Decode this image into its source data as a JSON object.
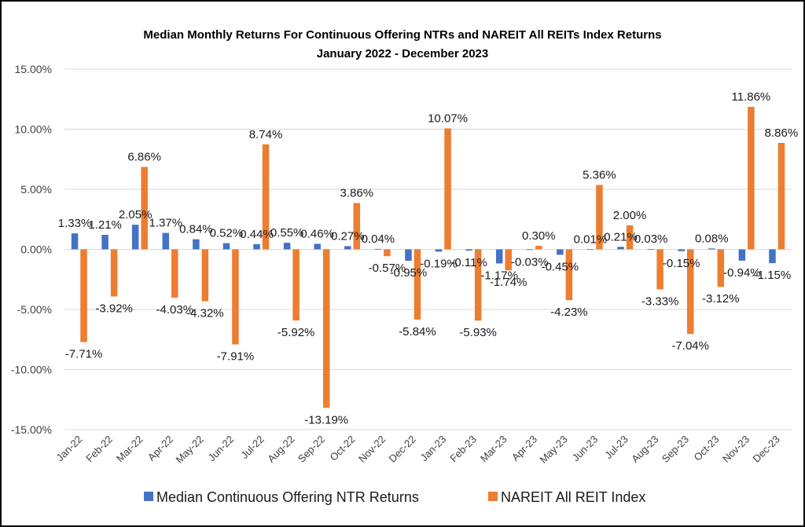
{
  "chart_data": {
    "type": "bar",
    "title": "Median Monthly Returns For Continuous Offering NTRs and NAREIT All REITs Index Returns",
    "subtitle": "January 2022 - December 2023",
    "xlabel": "",
    "ylabel": "",
    "ylim": [
      -15,
      15
    ],
    "yticks": [
      15,
      10,
      5,
      0,
      -5,
      -10,
      -15
    ],
    "ytick_labels": [
      "15.00%",
      "10.00%",
      "5.00%",
      "0.00%",
      "-5.00%",
      "-10.00%",
      "-15.00%"
    ],
    "grid": true,
    "legend_position": "bottom",
    "categories": [
      "Jan-22",
      "Feb-22",
      "Mar-22",
      "Apr-22",
      "May-22",
      "Jun-22",
      "Jul-22",
      "Aug-22",
      "Sep-22",
      "Oct-22",
      "Nov-22",
      "Dec-22",
      "Jan-23",
      "Feb-23",
      "Mar-23",
      "Apr-23",
      "May-23",
      "Jun-23",
      "Jul-23",
      "Aug-23",
      "Sep-23",
      "Oct-23",
      "Nov-23",
      "Dec-23"
    ],
    "series": [
      {
        "name": "Median Continuous Offering NTR Returns",
        "color": "#4472C4",
        "values": [
          1.33,
          1.21,
          2.05,
          1.37,
          0.84,
          0.52,
          0.44,
          0.55,
          0.46,
          0.27,
          0.04,
          -0.95,
          -0.19,
          -0.11,
          -1.17,
          -0.03,
          -0.45,
          0.01,
          0.21,
          0.03,
          -0.15,
          0.08,
          -0.94,
          -1.15
        ],
        "labels": [
          "1.33%",
          "1.21%",
          "2.05%",
          "1.37%",
          "0.84%",
          "0.52%",
          "0.44%",
          "0.55%",
          "0.46%",
          "0.27%",
          "0.04%",
          "-0.95%",
          "-0.19%",
          "-0.11%",
          "-1.17%",
          "-0.03%",
          "-0.45%",
          "0.01%",
          "0.21%",
          "0.03%",
          "-0.15%",
          "0.08%",
          "-0.94%",
          "-1.15%"
        ]
      },
      {
        "name": "NAREIT All REIT Index",
        "color": "#ED7D31",
        "values": [
          -7.71,
          -3.92,
          6.86,
          -4.03,
          -4.32,
          -7.91,
          8.74,
          -5.92,
          -13.19,
          3.86,
          -0.57,
          -5.84,
          10.07,
          -5.93,
          -1.74,
          0.3,
          -4.23,
          5.36,
          2.0,
          -3.33,
          -7.04,
          -3.12,
          11.86,
          8.86
        ],
        "labels": [
          "-7.71%",
          "-3.92%",
          "6.86%",
          "-4.03%",
          "-4.32%",
          "-7.91%",
          "8.74%",
          "-5.92%",
          "-13.19%",
          "3.86%",
          "-0.57%",
          "-5.84%",
          "10.07%",
          "-5.93%",
          "-1.74%",
          "0.30%",
          "-4.23%",
          "5.36%",
          "2.00%",
          "-3.33%",
          "-7.04%",
          "-3.12%",
          "11.86%",
          "8.86%"
        ]
      }
    ]
  }
}
